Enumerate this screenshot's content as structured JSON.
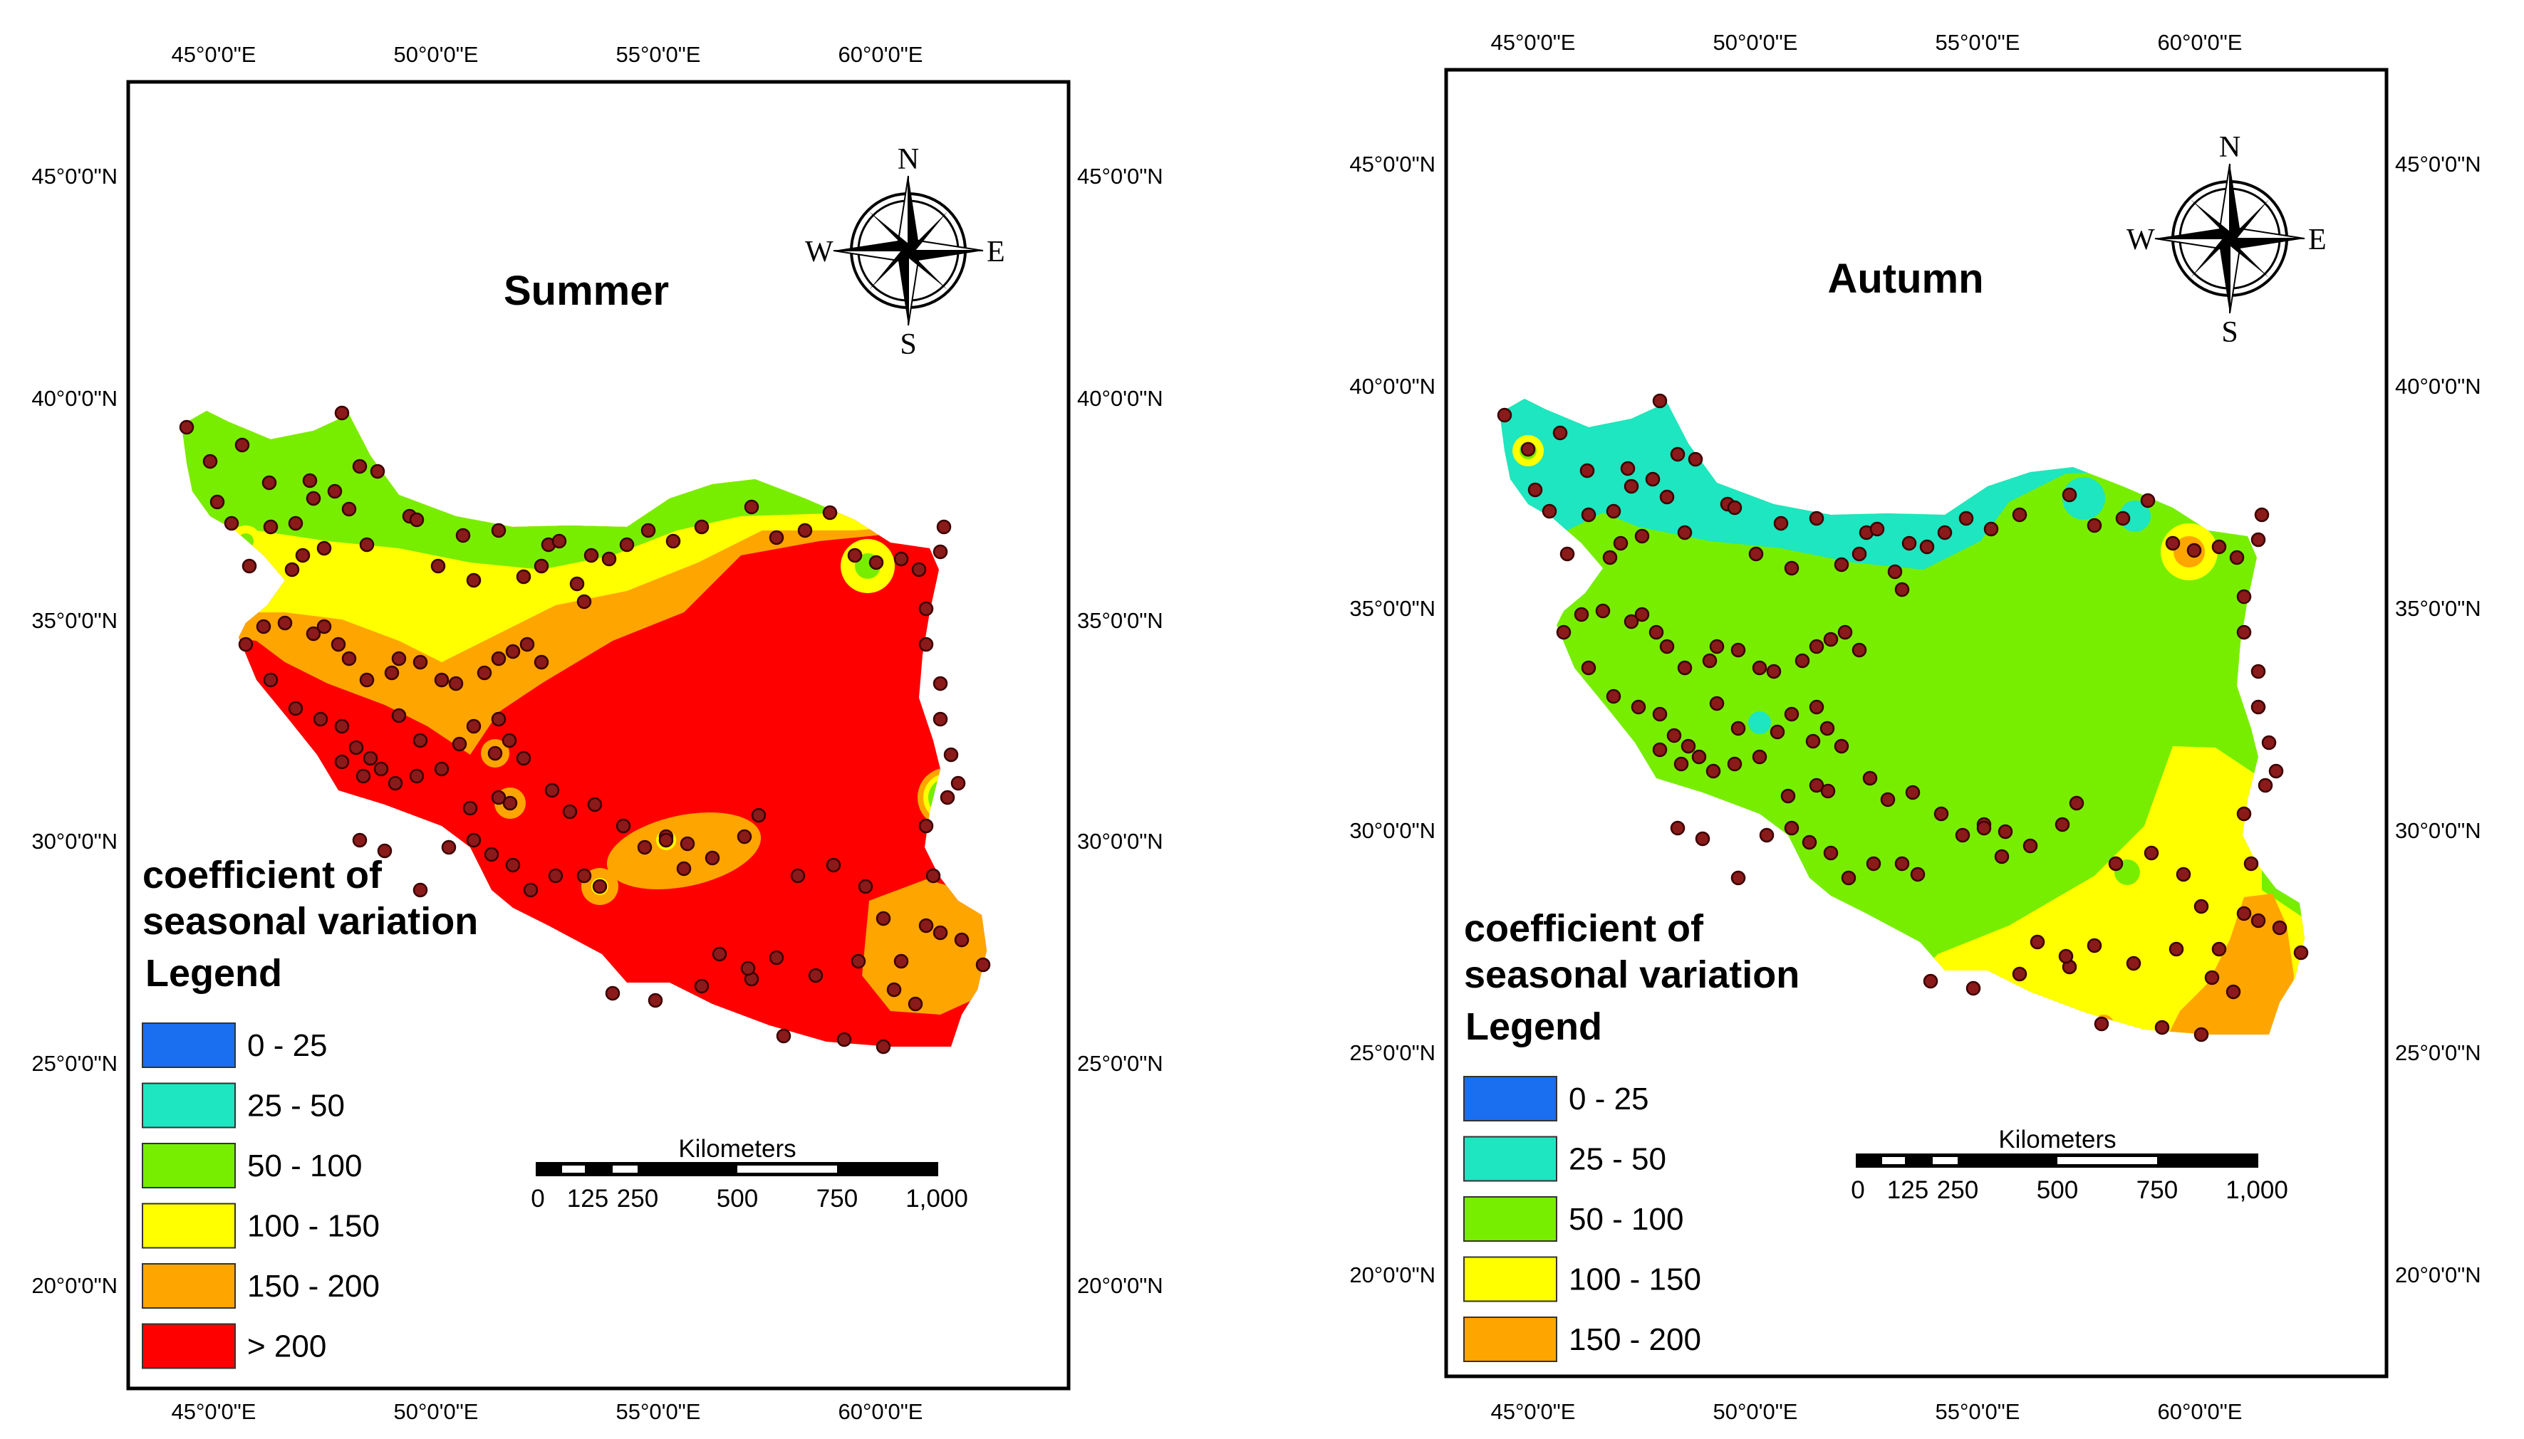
{
  "colors": {
    "0-25": "#1a6ef0",
    "25-50": "#1de6c0",
    "50-100": "#77ee00",
    "100-150": "#ffff00",
    "150-200": "#ffa500",
    ">200": "#ff0000",
    "station": "#8b1a1a"
  },
  "summer": {
    "title": "Summer",
    "lon_labels": [
      "45°0'0\"E",
      "50°0'0\"E",
      "55°0'0\"E",
      "60°0'0\"E"
    ],
    "lat_labels": [
      "45°0'0\"N",
      "40°0'0\"N",
      "35°0'0\"N",
      "30°0'0\"N",
      "25°0'0\"N",
      "20°0'0\"N"
    ],
    "legend": {
      "title_line1": "coefficient of",
      "title_line2": "seasonal variation",
      "title_line3": "Legend",
      "items": [
        {
          "label": "0 - 25",
          "color": "#1a6ef0"
        },
        {
          "label": "25 - 50",
          "color": "#1de6c0"
        },
        {
          "label": "50 - 100",
          "color": "#77ee00"
        },
        {
          "label": "100 - 150",
          "color": "#ffff00"
        },
        {
          "label": "150 - 200",
          "color": "#ffa500"
        },
        {
          "label": "> 200",
          "color": "#ff0000"
        }
      ]
    },
    "scale": {
      "unit": "Kilometers",
      "ticks": [
        "0",
        "125",
        "250",
        "500",
        "750",
        "1,000"
      ]
    },
    "compass": {
      "n": "N",
      "s": "S",
      "e": "E",
      "w": "W"
    }
  },
  "autumn": {
    "title": "Autumn",
    "lon_labels": [
      "45°0'0\"E",
      "50°0'0\"E",
      "55°0'0\"E",
      "60°0'0\"E"
    ],
    "lat_labels": [
      "45°0'0\"N",
      "40°0'0\"N",
      "35°0'0\"N",
      "30°0'0\"N",
      "25°0'0\"N",
      "20°0'0\"N"
    ],
    "legend": {
      "title_line1": "coefficient of",
      "title_line2": "seasonal variation",
      "title_line3": "Legend",
      "items": [
        {
          "label": "0 - 25",
          "color": "#1a6ef0"
        },
        {
          "label": "25 - 50",
          "color": "#1de6c0"
        },
        {
          "label": "50 - 100",
          "color": "#77ee00"
        },
        {
          "label": "100 - 150",
          "color": "#ffff00"
        },
        {
          "label": "150 - 200",
          "color": "#ffa500"
        }
      ]
    },
    "scale": {
      "unit": "Kilometers",
      "ticks": [
        "0",
        "125",
        "250",
        "500",
        "750",
        "1,000"
      ]
    },
    "compass": {
      "n": "N",
      "s": "S",
      "e": "E",
      "w": "W"
    }
  }
}
